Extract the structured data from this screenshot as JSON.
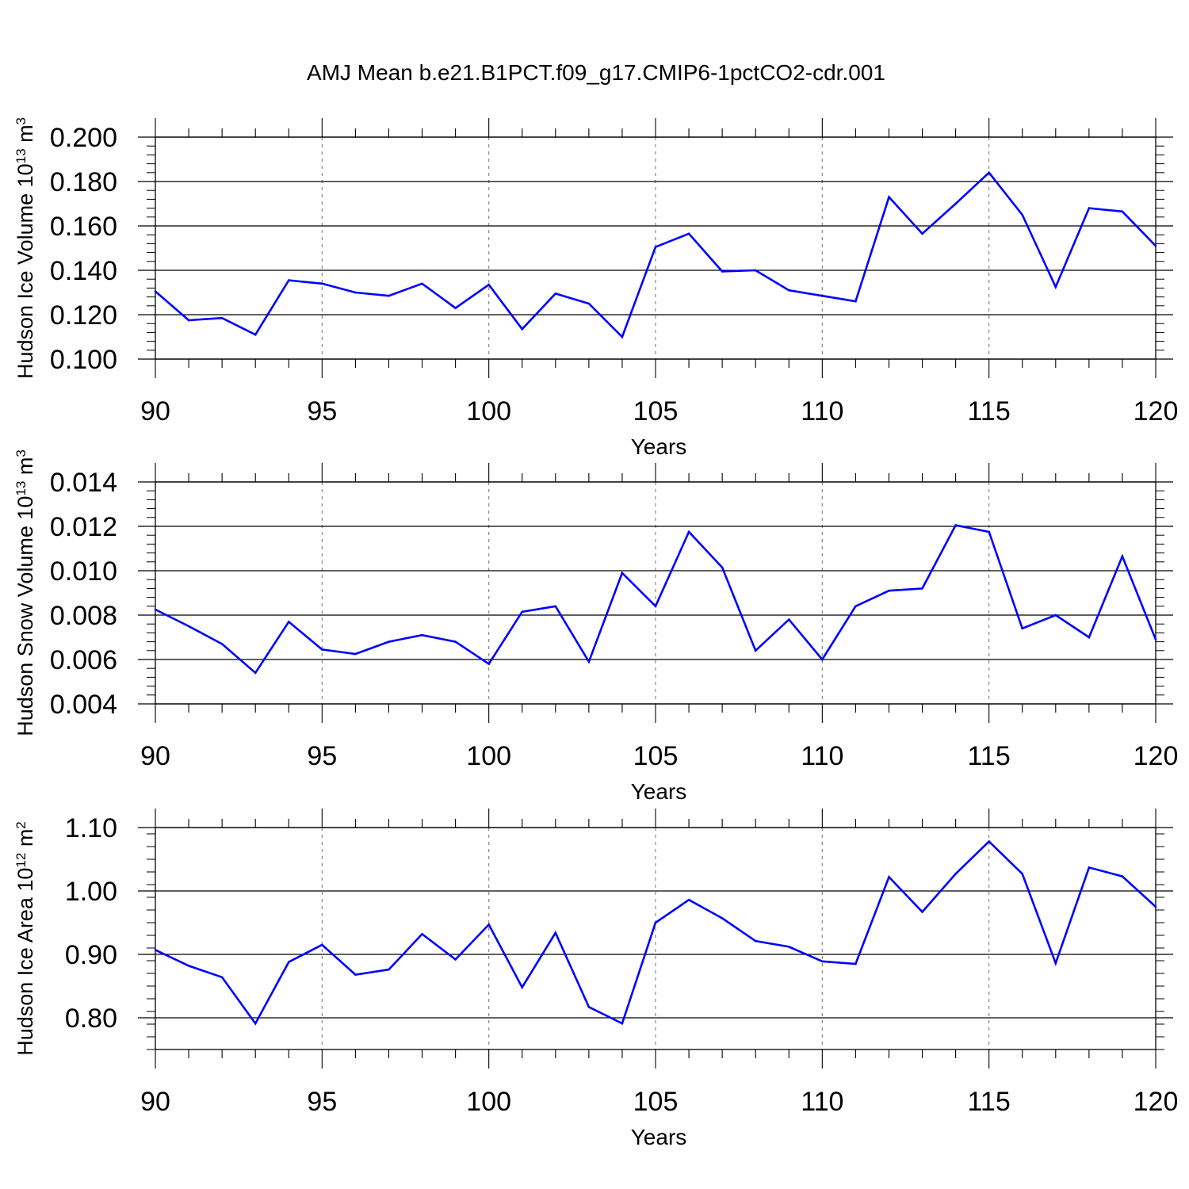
{
  "figure_title": "AMJ Mean b.e21.B1PCT.f09_g17.CMIP6-1pctCO2-cdr.001",
  "line_color": "#0000ff",
  "chart_data": [
    {
      "type": "line",
      "id": "ice-volume",
      "ylabel": {
        "main": "Hudson Ice Volume 10",
        "exp": "13",
        "tail": " m",
        "unit_exp": "3"
      },
      "xlabel": "Years",
      "xlim": [
        90,
        120
      ],
      "ylim": [
        0.1,
        0.2
      ],
      "x_ticks": [
        90,
        95,
        100,
        105,
        110,
        115,
        120
      ],
      "y_ticks": [
        0.1,
        0.12,
        0.14,
        0.16,
        0.18,
        0.2
      ],
      "y_tick_labels": [
        "0.100",
        "0.120",
        "0.140",
        "0.160",
        "0.180",
        "0.200"
      ],
      "x": [
        90,
        91,
        92,
        93,
        94,
        95,
        96,
        97,
        98,
        99,
        100,
        101,
        102,
        103,
        104,
        105,
        106,
        107,
        108,
        109,
        110,
        111,
        112,
        113,
        114,
        115,
        116,
        117,
        118,
        119,
        120
      ],
      "values": [
        0.1305,
        0.1175,
        0.1185,
        0.111,
        0.1355,
        0.134,
        0.13,
        0.1285,
        0.134,
        0.123,
        0.1335,
        0.1135,
        0.1295,
        0.125,
        0.11,
        0.1505,
        0.1565,
        0.1395,
        0.14,
        0.131,
        0.1285,
        0.126,
        0.173,
        0.1565,
        0.17,
        0.184,
        0.165,
        0.1325,
        0.168,
        0.1665,
        0.151
      ]
    },
    {
      "type": "line",
      "id": "snow-volume",
      "ylabel": {
        "main": "Hudson Snow Volume 10",
        "exp": "13",
        "tail": " m",
        "unit_exp": "3"
      },
      "xlabel": "Years",
      "xlim": [
        90,
        120
      ],
      "ylim": [
        0.004,
        0.014
      ],
      "x_ticks": [
        90,
        95,
        100,
        105,
        110,
        115,
        120
      ],
      "y_ticks": [
        0.004,
        0.006,
        0.008,
        0.01,
        0.012,
        0.014
      ],
      "y_tick_labels": [
        "0.004",
        "0.006",
        "0.008",
        "0.010",
        "0.012",
        "0.014"
      ],
      "x": [
        90,
        91,
        92,
        93,
        94,
        95,
        96,
        97,
        98,
        99,
        100,
        101,
        102,
        103,
        104,
        105,
        106,
        107,
        108,
        109,
        110,
        111,
        112,
        113,
        114,
        115,
        116,
        117,
        118,
        119,
        120
      ],
      "values": [
        0.00825,
        0.0075,
        0.0067,
        0.0054,
        0.0077,
        0.00645,
        0.00625,
        0.0068,
        0.0071,
        0.0068,
        0.0058,
        0.00815,
        0.0084,
        0.0059,
        0.0099,
        0.0084,
        0.01175,
        0.01015,
        0.0064,
        0.0078,
        0.006,
        0.0084,
        0.0091,
        0.0092,
        0.01205,
        0.01175,
        0.0074,
        0.008,
        0.007,
        0.01065,
        0.0069
      ]
    },
    {
      "type": "line",
      "id": "ice-area",
      "ylabel": {
        "main": "Hudson Ice Area 10",
        "exp": "12",
        "tail": " m",
        "unit_exp": "2"
      },
      "xlabel": "Years",
      "xlim": [
        90,
        120
      ],
      "ylim": [
        0.75,
        1.1
      ],
      "x_ticks": [
        90,
        95,
        100,
        105,
        110,
        115,
        120
      ],
      "y_ticks": [
        0.8,
        0.9,
        1.0,
        1.1
      ],
      "y_tick_labels": [
        "0.80",
        "0.90",
        "1.00",
        "1.10"
      ],
      "x": [
        90,
        91,
        92,
        93,
        94,
        95,
        96,
        97,
        98,
        99,
        100,
        101,
        102,
        103,
        104,
        105,
        106,
        107,
        108,
        109,
        110,
        111,
        112,
        113,
        114,
        115,
        116,
        117,
        118,
        119,
        120
      ],
      "values": [
        0.907,
        0.882,
        0.864,
        0.791,
        0.888,
        0.915,
        0.868,
        0.876,
        0.932,
        0.892,
        0.947,
        0.848,
        0.934,
        0.817,
        0.791,
        0.95,
        0.986,
        0.957,
        0.921,
        0.912,
        0.889,
        0.885,
        1.022,
        0.967,
        1.027,
        1.078,
        1.027,
        0.886,
        1.037,
        1.023,
        0.975
      ]
    }
  ]
}
